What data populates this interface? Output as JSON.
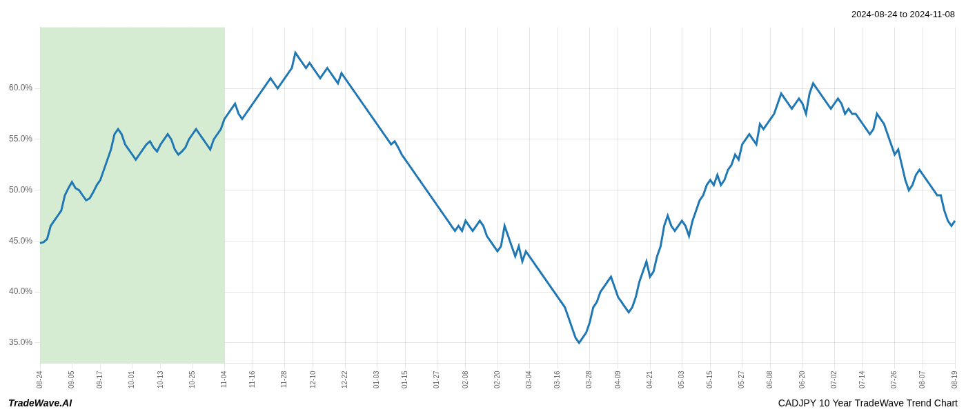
{
  "chart_data": {
    "type": "line",
    "title": "2024-08-24 to 2024-11-08",
    "annotations": [
      "TradeWave.AI",
      "CADJPY 10 Year TradeWave Trend Chart"
    ],
    "color": "#1f77b4",
    "grid": true,
    "highlight": {
      "start": "08-24",
      "end": "11-04",
      "color": "#d6ecd2"
    },
    "ylim": [
      33.0,
      66.0
    ],
    "yticks": [
      {
        "value": 35.0,
        "label": "35.0%"
      },
      {
        "value": 40.0,
        "label": "40.0%"
      },
      {
        "value": 45.0,
        "label": "45.0%"
      },
      {
        "value": 50.0,
        "label": "50.0%"
      },
      {
        "value": 55.0,
        "label": "55.0%"
      },
      {
        "value": 60.0,
        "label": "60.0%"
      }
    ],
    "categories": [
      "08-24",
      null,
      null,
      null,
      null,
      null,
      null,
      null,
      null,
      "09-05",
      null,
      null,
      null,
      null,
      null,
      null,
      null,
      "09-17",
      null,
      null,
      null,
      null,
      null,
      null,
      null,
      null,
      "10-01",
      null,
      null,
      null,
      null,
      null,
      null,
      null,
      "10-13",
      null,
      null,
      null,
      null,
      null,
      null,
      null,
      null,
      "10-25",
      null,
      null,
      null,
      null,
      null,
      null,
      null,
      null,
      "11-04",
      null,
      null,
      null,
      null,
      null,
      null,
      null,
      "11-16",
      null,
      null,
      null,
      null,
      null,
      null,
      null,
      null,
      "11-28",
      null,
      null,
      null,
      null,
      null,
      null,
      null,
      "12-10",
      null,
      null,
      null,
      null,
      null,
      null,
      null,
      null,
      "12-22",
      null,
      null,
      null,
      null,
      null,
      null,
      null,
      null,
      "01-03",
      null,
      null,
      null,
      null,
      null,
      null,
      null,
      "01-15",
      null,
      null,
      null,
      null,
      null,
      null,
      null,
      null,
      "01-27",
      null,
      null,
      null,
      null,
      null,
      null,
      null,
      "02-08",
      null,
      null,
      null,
      null,
      null,
      null,
      null,
      null,
      "02-20",
      null,
      null,
      null,
      null,
      null,
      null,
      null,
      null,
      "03-04",
      null,
      null,
      null,
      null,
      null,
      null,
      null,
      "03-16",
      null,
      null,
      null,
      null,
      null,
      null,
      null,
      null,
      "03-28",
      null,
      null,
      null,
      null,
      null,
      null,
      null,
      "04-09",
      null,
      null,
      null,
      null,
      null,
      null,
      null,
      null,
      "04-21",
      null,
      null,
      null,
      null,
      null,
      null,
      null,
      null,
      "05-03",
      null,
      null,
      null,
      null,
      null,
      null,
      null,
      "05-15",
      null,
      null,
      null,
      null,
      null,
      null,
      null,
      null,
      "05-27",
      null,
      null,
      null,
      null,
      null,
      null,
      null,
      "06-08",
      null,
      null,
      null,
      null,
      null,
      null,
      null,
      null,
      "06-20",
      null,
      null,
      null,
      null,
      null,
      null,
      null,
      null,
      "07-02",
      null,
      null,
      null,
      null,
      null,
      null,
      null,
      "07-14",
      null,
      null,
      null,
      null,
      null,
      null,
      null,
      null,
      "07-26",
      null,
      null,
      null,
      null,
      null,
      null,
      null,
      "08-07",
      null,
      null,
      null,
      null,
      null,
      null,
      null,
      null,
      "08-19"
    ],
    "values": [
      44.8,
      44.9,
      45.2,
      46.5,
      47.0,
      47.5,
      48.0,
      49.5,
      50.2,
      50.8,
      50.2,
      50.0,
      49.5,
      49.0,
      49.2,
      49.8,
      50.5,
      51.0,
      52.0,
      53.0,
      54.0,
      55.5,
      56.0,
      55.5,
      54.5,
      54.0,
      53.5,
      53.0,
      53.5,
      54.0,
      54.5,
      54.8,
      54.2,
      53.8,
      54.5,
      55.0,
      55.5,
      55.0,
      54.0,
      53.5,
      53.8,
      54.2,
      55.0,
      55.5,
      56.0,
      55.5,
      55.0,
      54.5,
      54.0,
      55.0,
      55.5,
      56.0,
      57.0,
      57.5,
      58.0,
      58.5,
      57.5,
      57.0,
      57.5,
      58.0,
      58.5,
      59.0,
      59.5,
      60.0,
      60.5,
      61.0,
      60.5,
      60.0,
      60.5,
      61.0,
      61.5,
      62.0,
      63.5,
      63.0,
      62.5,
      62.0,
      62.5,
      62.0,
      61.5,
      61.0,
      61.5,
      62.0,
      61.5,
      61.0,
      60.5,
      61.5,
      61.0,
      60.5,
      60.0,
      59.5,
      59.0,
      58.5,
      58.0,
      57.5,
      57.0,
      56.5,
      56.0,
      55.5,
      55.0,
      54.5,
      54.8,
      54.2,
      53.5,
      53.0,
      52.5,
      52.0,
      51.5,
      51.0,
      50.5,
      50.0,
      49.5,
      49.0,
      48.5,
      48.0,
      47.5,
      47.0,
      46.5,
      46.0,
      46.5,
      46.0,
      47.0,
      46.5,
      46.0,
      46.5,
      47.0,
      46.5,
      45.5,
      45.0,
      44.5,
      44.0,
      44.5,
      46.5,
      45.5,
      44.5,
      43.5,
      44.5,
      43.0,
      44.0,
      43.5,
      43.0,
      42.5,
      42.0,
      41.5,
      41.0,
      40.5,
      40.0,
      39.5,
      39.0,
      38.5,
      37.5,
      36.5,
      35.5,
      35.0,
      35.5,
      36.0,
      37.0,
      38.5,
      39.0,
      40.0,
      40.5,
      41.0,
      41.5,
      40.5,
      39.5,
      39.0,
      38.5,
      38.0,
      38.5,
      39.5,
      41.0,
      42.0,
      43.0,
      41.5,
      42.0,
      43.5,
      44.5,
      46.5,
      47.5,
      46.5,
      46.0,
      46.5,
      47.0,
      46.5,
      45.5,
      47.0,
      48.0,
      49.0,
      49.5,
      50.5,
      51.0,
      50.5,
      51.5,
      50.5,
      51.0,
      52.0,
      52.5,
      53.5,
      53.0,
      54.5,
      55.0,
      55.5,
      55.0,
      54.5,
      56.5,
      56.0,
      56.5,
      57.0,
      57.5,
      58.5,
      59.5,
      59.0,
      58.5,
      58.0,
      58.5,
      59.0,
      58.5,
      57.5,
      59.5,
      60.5,
      60.0,
      59.5,
      59.0,
      58.5,
      58.0,
      58.5,
      59.0,
      58.5,
      57.5,
      58.0,
      57.5,
      57.5,
      57.0,
      56.5,
      56.0,
      55.5,
      56.0,
      57.5,
      57.0,
      56.5,
      55.5,
      54.5,
      53.5,
      54.0,
      52.5,
      51.0,
      50.0,
      50.5,
      51.5,
      52.0,
      51.5,
      51.0,
      50.5,
      50.0,
      49.5,
      49.5,
      48.0,
      47.0,
      46.5,
      47.0
    ]
  }
}
